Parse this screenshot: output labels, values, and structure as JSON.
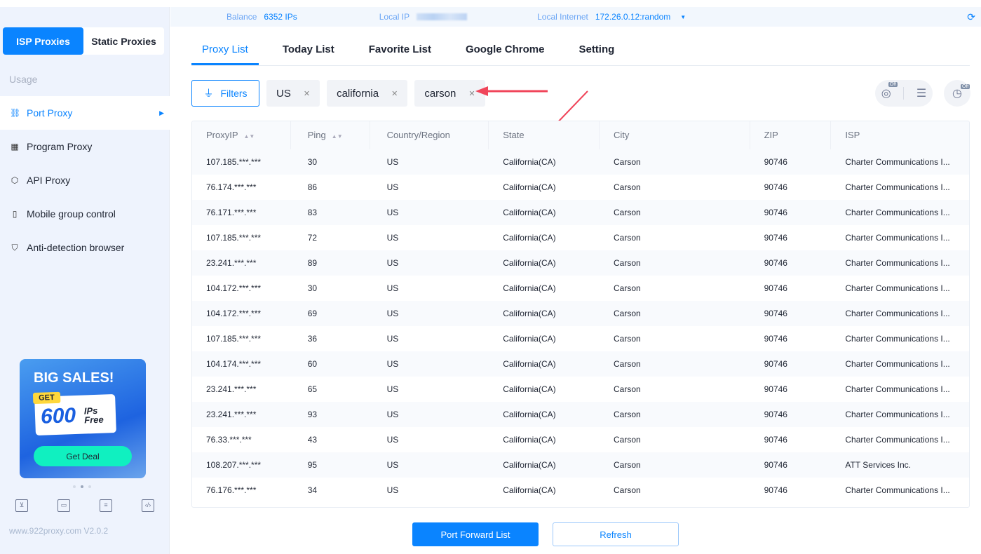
{
  "sidebar": {
    "segments": [
      "ISP Proxies",
      "Static Proxies"
    ],
    "usage_label": "Usage",
    "items": [
      {
        "label": "Port Proxy",
        "icon": "network-icon"
      },
      {
        "label": "Program Proxy",
        "icon": "grid-icon"
      },
      {
        "label": "API Proxy",
        "icon": "api-icon"
      },
      {
        "label": "Mobile group control",
        "icon": "mobile-icon"
      },
      {
        "label": "Anti-detection browser",
        "icon": "shield-icon"
      }
    ],
    "promo": {
      "title": "BIG SALES!",
      "get": "GET",
      "amount": "600",
      "ips": "IPs",
      "free": "Free",
      "button": "Get Deal"
    },
    "footer": "www.922proxy.com  V2.0.2"
  },
  "topbar": {
    "balance_label": "Balance",
    "balance_value": "6352 IPs",
    "local_ip_label": "Local IP",
    "local_internet_label": "Local Internet",
    "local_internet_value": "172.26.0.12:random"
  },
  "tabs": [
    "Proxy List",
    "Today List",
    "Favorite List",
    "Google Chrome",
    "Setting"
  ],
  "filters": {
    "button": "Filters",
    "chips": [
      "US",
      "california",
      "carson"
    ],
    "off_badge": "Off"
  },
  "table": {
    "headers": [
      "ProxyIP",
      "Ping",
      "Country/Region",
      "State",
      "City",
      "ZIP",
      "ISP"
    ],
    "rows": [
      [
        "107.185.***.***",
        "30",
        "US",
        "California(CA)",
        "Carson",
        "90746",
        "Charter Communications I..."
      ],
      [
        "76.174.***.***",
        "86",
        "US",
        "California(CA)",
        "Carson",
        "90746",
        "Charter Communications I..."
      ],
      [
        "76.171.***.***",
        "83",
        "US",
        "California(CA)",
        "Carson",
        "90746",
        "Charter Communications I..."
      ],
      [
        "107.185.***.***",
        "72",
        "US",
        "California(CA)",
        "Carson",
        "90746",
        "Charter Communications I..."
      ],
      [
        "23.241.***.***",
        "89",
        "US",
        "California(CA)",
        "Carson",
        "90746",
        "Charter Communications I..."
      ],
      [
        "104.172.***.***",
        "30",
        "US",
        "California(CA)",
        "Carson",
        "90746",
        "Charter Communications I..."
      ],
      [
        "104.172.***.***",
        "69",
        "US",
        "California(CA)",
        "Carson",
        "90746",
        "Charter Communications I..."
      ],
      [
        "107.185.***.***",
        "36",
        "US",
        "California(CA)",
        "Carson",
        "90746",
        "Charter Communications I..."
      ],
      [
        "104.174.***.***",
        "60",
        "US",
        "California(CA)",
        "Carson",
        "90746",
        "Charter Communications I..."
      ],
      [
        "23.241.***.***",
        "65",
        "US",
        "California(CA)",
        "Carson",
        "90746",
        "Charter Communications I..."
      ],
      [
        "23.241.***.***",
        "93",
        "US",
        "California(CA)",
        "Carson",
        "90746",
        "Charter Communications I..."
      ],
      [
        "76.33.***.***",
        "43",
        "US",
        "California(CA)",
        "Carson",
        "90746",
        "Charter Communications I..."
      ],
      [
        "108.207.***.***",
        "95",
        "US",
        "California(CA)",
        "Carson",
        "90746",
        "ATT Services Inc."
      ],
      [
        "76.176.***.***",
        "34",
        "US",
        "California(CA)",
        "Carson",
        "90746",
        "Charter Communications I..."
      ]
    ]
  },
  "actions": {
    "port_forward": "Port Forward List",
    "refresh": "Refresh"
  },
  "colors": {
    "accent": "#0a84ff",
    "annotation_arrow": "#f0455a"
  }
}
